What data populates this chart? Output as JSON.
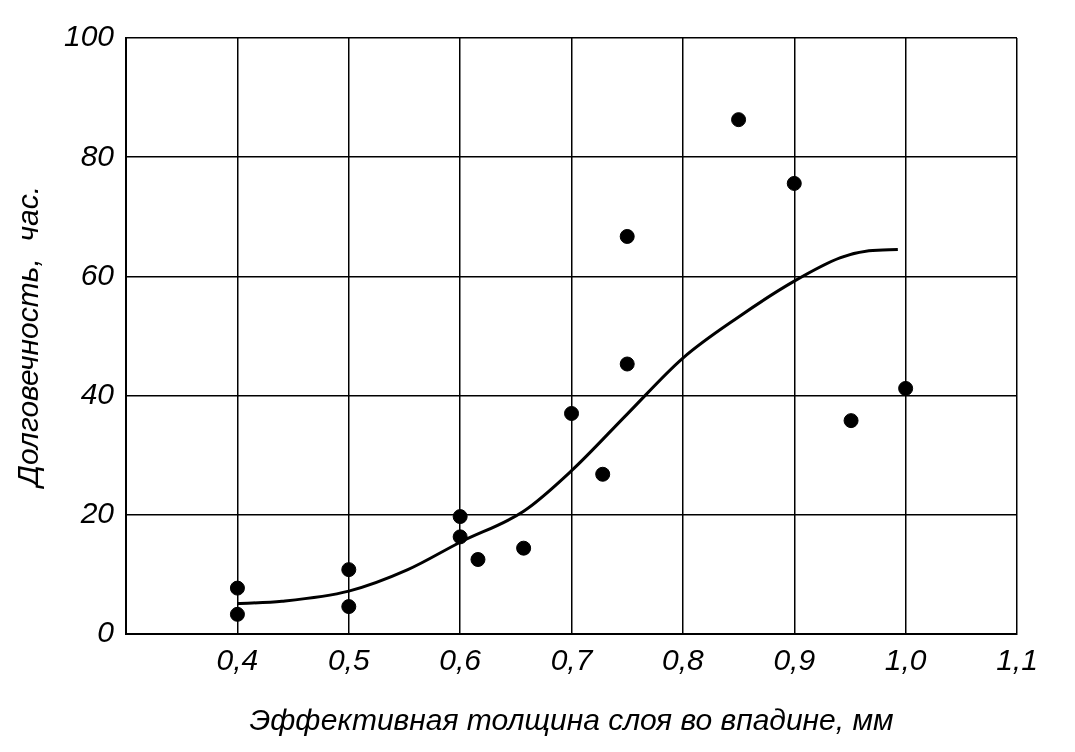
{
  "chart_data": {
    "type": "scatter",
    "xlabel": "Эффективная толщина слоя во впадине, мм",
    "ylabel": "Долговечность,  час.",
    "xlim": [
      0.3,
      1.1
    ],
    "xticks": [
      {
        "value": 0.3,
        "label": null
      },
      {
        "value": 0.4,
        "label": "0,4"
      },
      {
        "value": 0.5,
        "label": "0,5"
      },
      {
        "value": 0.6,
        "label": "0,6"
      },
      {
        "value": 0.7,
        "label": "0,7"
      },
      {
        "value": 0.8,
        "label": "0,8"
      },
      {
        "value": 0.9,
        "label": "0,9"
      },
      {
        "value": 1.0,
        "label": "1,0"
      },
      {
        "value": 1.1,
        "label": "1,1"
      }
    ],
    "ylim": [
      0,
      100
    ],
    "yticks": [
      0,
      20,
      40,
      60,
      80,
      100
    ],
    "grid": true,
    "marker": "circle",
    "series": [
      {
        "color": "#000000",
        "x": [
          0.4,
          0.4,
          0.5,
          0.5,
          0.6,
          0.6,
          0.616,
          0.657,
          0.7,
          0.728,
          0.75,
          0.75,
          0.85,
          0.9,
          0.951,
          1.0
        ],
        "values": [
          7.7,
          3.3,
          10.8,
          4.6,
          19.7,
          16.3,
          12.5,
          14.4,
          37.0,
          26.8,
          66.7,
          45.3,
          86.3,
          75.6,
          35.8,
          41.2
        ]
      },
      {
        "type": "line",
        "color": "#000000",
        "marker": "none",
        "x": [
          0.4,
          0.44,
          0.5,
          0.553,
          0.6,
          0.657,
          0.7,
          0.75,
          0.8,
          0.85,
          0.9,
          0.941,
          0.967,
          0.993
        ],
        "values": [
          5.1,
          5.5,
          7.2,
          10.8,
          15.4,
          20.6,
          27.4,
          36.9,
          46.3,
          53.2,
          59.2,
          63.1,
          64.3,
          64.5
        ]
      }
    ]
  }
}
